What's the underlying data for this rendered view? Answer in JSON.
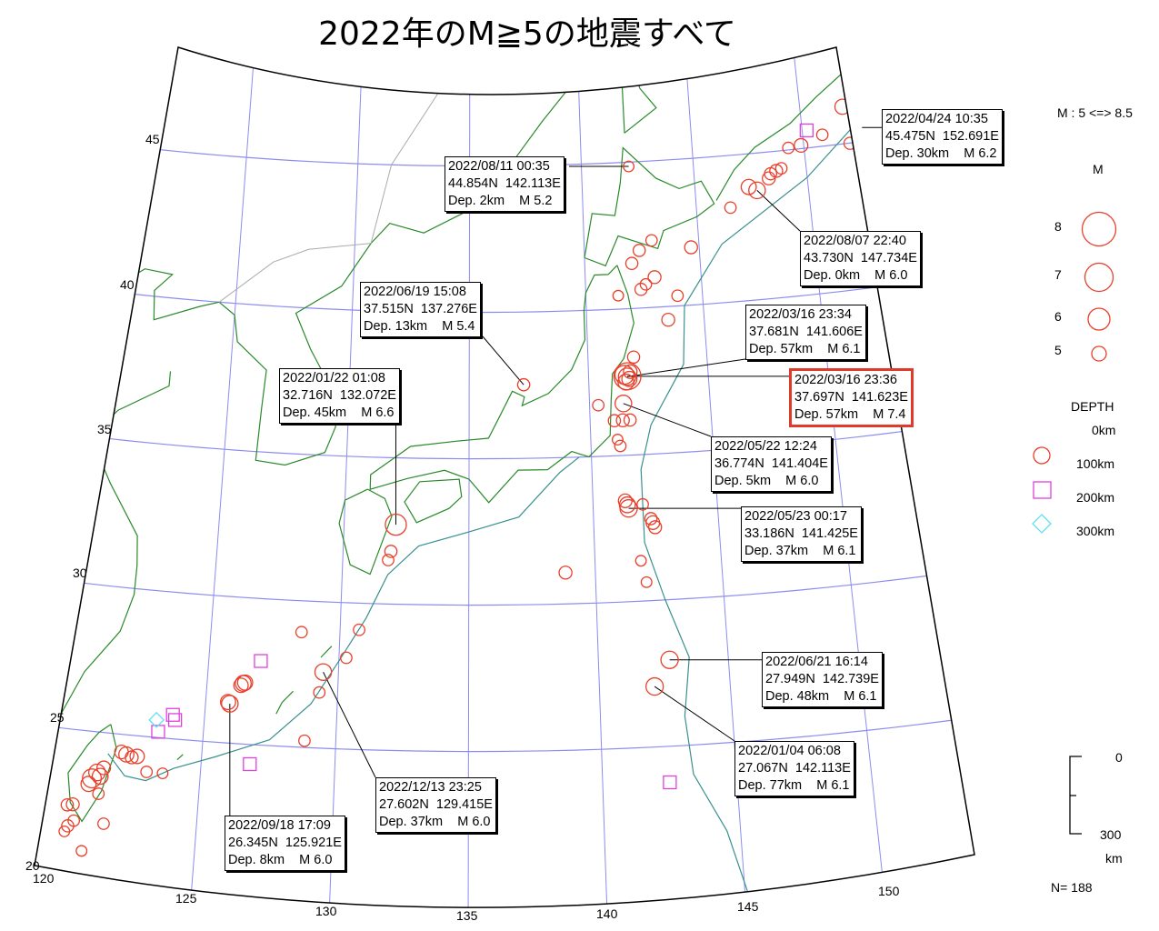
{
  "title": "2022年のM≧5の地震すべて",
  "axes": {
    "lat_labels": [
      "45",
      "40",
      "35",
      "30",
      "25",
      "20"
    ],
    "lon_labels": [
      "120",
      "125",
      "130",
      "135",
      "140",
      "145",
      "150"
    ]
  },
  "legend": {
    "range_text": "M : 5 <=> 8.5",
    "mag_title": "M",
    "mag_items": [
      "8",
      "7",
      "6",
      "5"
    ],
    "depth_title": "DEPTH",
    "depth_items": [
      "0km",
      "100km",
      "200km",
      "300km"
    ],
    "depth_scale_top": "0",
    "depth_scale_bottom": "300",
    "depth_scale_unit": "km",
    "count": "N= 188"
  },
  "colors": {
    "shallow": "#e8402a",
    "intermediate": "#e040e0",
    "deep": "#60e0f0",
    "coast": "#2a8a2a",
    "trench": "#3a9090",
    "grid": "#8c8cf0",
    "highlight": "#e03a2a"
  },
  "callouts": [
    {
      "date": "2022/04/24 10:35",
      "loc": "45.475N  152.691E",
      "info": "Dep. 30km    M 6.2",
      "highlight": false
    },
    {
      "date": "2022/08/11 00:35",
      "loc": "44.854N  142.113E",
      "info": "Dep. 2km    M 5.2",
      "highlight": false
    },
    {
      "date": "2022/08/07 22:40",
      "loc": "43.730N  147.734E",
      "info": "Dep. 0km    M 6.0",
      "highlight": false
    },
    {
      "date": "2022/06/19 15:08",
      "loc": "37.515N  137.276E",
      "info": "Dep. 13km    M 5.4",
      "highlight": false
    },
    {
      "date": "2022/03/16 23:34",
      "loc": "37.681N  141.606E",
      "info": "Dep. 57km    M 6.1",
      "highlight": false
    },
    {
      "date": "2022/03/16 23:36",
      "loc": "37.697N  141.623E",
      "info": "Dep. 57km    M 7.4",
      "highlight": true
    },
    {
      "date": "2022/01/22 01:08",
      "loc": "32.716N  132.072E",
      "info": "Dep. 45km    M 6.6",
      "highlight": false
    },
    {
      "date": "2022/05/22 12:24",
      "loc": "36.774N  141.404E",
      "info": "Dep. 5km    M 6.0",
      "highlight": false
    },
    {
      "date": "2022/05/23 00:17",
      "loc": "33.186N  141.425E",
      "info": "Dep. 37km    M 6.1",
      "highlight": false
    },
    {
      "date": "2022/06/21 16:14",
      "loc": "27.949N  142.739E",
      "info": "Dep. 48km    M 6.1",
      "highlight": false
    },
    {
      "date": "2022/01/04 06:08",
      "loc": "27.067N  142.113E",
      "info": "Dep. 77km    M 6.1",
      "highlight": false
    },
    {
      "date": "2022/12/13 23:25",
      "loc": "27.602N  129.415E",
      "info": "Dep. 37km    M 6.0",
      "highlight": false
    },
    {
      "date": "2022/09/18 17:09",
      "loc": "26.345N  125.921E",
      "info": "Dep. 8km    M 6.0",
      "highlight": false
    }
  ],
  "events": [
    [
      45.475,
      152.691,
      6.2,
      "shallow"
    ],
    [
      45.3,
      152.8,
      6.0,
      "shallow"
    ],
    [
      46.26,
      151.93,
      5.8,
      "shallow"
    ],
    [
      44.99,
      152.07,
      5.4,
      "shallow"
    ],
    [
      45.39,
      150.88,
      5.3,
      "shallow"
    ],
    [
      45.11,
      149.88,
      5.6,
      "shallow"
    ],
    [
      45.07,
      149.3,
      5.3,
      "shallow"
    ],
    [
      44.33,
      148.66,
      5.5,
      "shallow"
    ],
    [
      44.25,
      148.4,
      5.4,
      "shallow"
    ],
    [
      44.1,
      148.3,
      5.5,
      "shallow"
    ],
    [
      44.4,
      148.9,
      5.3,
      "shallow"
    ],
    [
      43.73,
      147.734,
      6.0,
      "shallow"
    ],
    [
      43.87,
      147.38,
      5.8,
      "shallow"
    ],
    [
      43.22,
      146.5,
      5.3,
      "shallow"
    ],
    [
      44.854,
      142.113,
      5.2,
      "shallow"
    ],
    [
      41.97,
      144.65,
      5.5,
      "shallow"
    ],
    [
      42.29,
      142.95,
      5.3,
      "shallow"
    ],
    [
      41.97,
      142.39,
      5.4,
      "shallow"
    ],
    [
      41.54,
      142.04,
      5.4,
      "shallow"
    ],
    [
      41.03,
      142.99,
      5.5,
      "shallow"
    ],
    [
      40.64,
      142.38,
      5.4,
      "shallow"
    ],
    [
      40.35,
      143.93,
      5.3,
      "shallow"
    ],
    [
      39.55,
      143.47,
      5.5,
      "shallow"
    ],
    [
      40.46,
      141.39,
      5.2,
      "shallow"
    ],
    [
      40.8,
      142.6,
      5.3,
      "shallow"
    ],
    [
      38.34,
      141.92,
      5.4,
      "shallow"
    ],
    [
      37.681,
      141.606,
      6.1,
      "shallow"
    ],
    [
      37.697,
      141.623,
      7.4,
      "shallow"
    ],
    [
      37.75,
      141.5,
      6.3,
      "shallow"
    ],
    [
      37.6,
      141.7,
      5.8,
      "shallow"
    ],
    [
      37.5,
      141.55,
      5.9,
      "shallow"
    ],
    [
      37.85,
      141.75,
      5.6,
      "shallow"
    ],
    [
      36.774,
      141.404,
      6.0,
      "shallow"
    ],
    [
      36.2,
      141.35,
      5.5,
      "shallow"
    ],
    [
      36.2,
      141.0,
      5.4,
      "shallow"
    ],
    [
      36.2,
      141.65,
      5.4,
      "shallow"
    ],
    [
      35.33,
      141.2,
      5.3,
      "shallow"
    ],
    [
      35.55,
      141.1,
      5.2,
      "shallow"
    ],
    [
      36.75,
      140.36,
      5.3,
      "shallow"
    ],
    [
      33.186,
      141.425,
      6.1,
      "shallow"
    ],
    [
      33.31,
      141.38,
      5.9,
      "shallow"
    ],
    [
      33.45,
      141.3,
      5.6,
      "shallow"
    ],
    [
      33.3,
      142.0,
      5.3,
      "shallow"
    ],
    [
      32.66,
      142.37,
      5.6,
      "shallow"
    ],
    [
      32.5,
      142.45,
      5.5,
      "shallow"
    ],
    [
      32.8,
      142.3,
      5.4,
      "shallow"
    ],
    [
      31.38,
      141.82,
      5.2,
      "shallow"
    ],
    [
      30.64,
      142.0,
      5.2,
      "shallow"
    ],
    [
      31.07,
      138.82,
      5.5,
      "shallow"
    ],
    [
      27.949,
      142.739,
      6.1,
      "shallow"
    ],
    [
      27.067,
      142.113,
      6.1,
      "shallow"
    ],
    [
      37.515,
      137.276,
      5.4,
      "shallow"
    ],
    [
      32.716,
      132.072,
      6.6,
      "shallow"
    ],
    [
      31.8,
      131.9,
      5.4,
      "shallow"
    ],
    [
      31.5,
      131.8,
      5.3,
      "shallow"
    ],
    [
      28.93,
      128.51,
      5.3,
      "shallow"
    ],
    [
      29.09,
      130.74,
      5.3,
      "shallow"
    ],
    [
      27.602,
      129.415,
      6.0,
      "shallow"
    ],
    [
      28.12,
      130.28,
      5.3,
      "shallow"
    ],
    [
      26.9,
      129.3,
      5.3,
      "shallow"
    ],
    [
      25.23,
      128.82,
      5.3,
      "shallow"
    ],
    [
      27.07,
      126.38,
      5.9,
      "shallow"
    ],
    [
      27.1,
      126.45,
      5.8,
      "shallow"
    ],
    [
      27.0,
      126.3,
      5.7,
      "shallow"
    ],
    [
      26.345,
      125.921,
      6.0,
      "shallow"
    ],
    [
      26.4,
      125.85,
      5.8,
      "shallow"
    ],
    [
      24.33,
      122.19,
      5.8,
      "shallow"
    ],
    [
      24.4,
      122.0,
      5.6,
      "shallow"
    ],
    [
      24.25,
      122.4,
      5.5,
      "shallow"
    ],
    [
      24.3,
      122.6,
      5.7,
      "shallow"
    ],
    [
      23.62,
      121.17,
      6.0,
      "shallow"
    ],
    [
      23.4,
      121.0,
      6.3,
      "shallow"
    ],
    [
      23.2,
      120.9,
      5.8,
      "shallow"
    ],
    [
      23.5,
      121.3,
      5.9,
      "shallow"
    ],
    [
      23.8,
      121.4,
      5.6,
      "shallow"
    ],
    [
      23.8,
      123.0,
      5.3,
      "shallow"
    ],
    [
      23.8,
      123.6,
      5.2,
      "shallow"
    ],
    [
      22.41,
      120.2,
      5.4,
      "shallow"
    ],
    [
      22.45,
      120.4,
      5.5,
      "shallow"
    ],
    [
      22.9,
      121.3,
      5.3,
      "shallow"
    ],
    [
      21.9,
      120.5,
      5.3,
      "shallow"
    ],
    [
      21.7,
      120.3,
      5.4,
      "shallow"
    ],
    [
      21.5,
      120.2,
      5.2,
      "shallow"
    ],
    [
      21.9,
      121.6,
      5.3,
      "shallow"
    ],
    [
      20.9,
      120.9,
      5.2,
      "shallow"
    ],
    [
      45.6,
      150.2,
      5.3,
      "intermediate"
    ],
    [
      23.77,
      142.5,
      5.3,
      "intermediate"
    ],
    [
      27.87,
      127.0,
      5.3,
      "intermediate"
    ],
    [
      24.33,
      126.82,
      5.3,
      "intermediate"
    ],
    [
      25.82,
      123.8,
      5.3,
      "intermediate"
    ],
    [
      25.65,
      123.9,
      5.3,
      "intermediate"
    ],
    [
      25.2,
      123.3,
      5.3,
      "intermediate"
    ],
    [
      25.6,
      123.2,
      5.2,
      "deep"
    ]
  ]
}
